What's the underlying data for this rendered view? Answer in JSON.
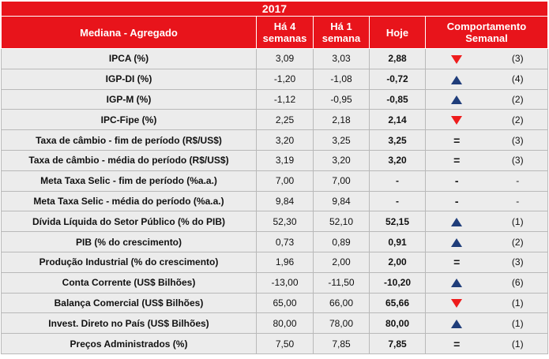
{
  "header": {
    "year": "2017",
    "col_label": "Mediana - Agregado",
    "col_4w": "Há 4 semanas",
    "col_1w": "Há 1 semana",
    "col_today": "Hoje",
    "col_behavior": "Comportamento Semanal"
  },
  "rows": [
    {
      "label": "IPCA (%)",
      "w4": "3,09",
      "w1": "3,03",
      "today": "2,88",
      "trend": "down",
      "symbol": "",
      "count": "(3)"
    },
    {
      "label": "IGP-DI (%)",
      "w4": "-1,20",
      "w1": "-1,08",
      "today": "-0,72",
      "trend": "up",
      "symbol": "",
      "count": "(4)"
    },
    {
      "label": "IGP-M (%)",
      "w4": "-1,12",
      "w1": "-0,95",
      "today": "-0,85",
      "trend": "up",
      "symbol": "",
      "count": "(2)"
    },
    {
      "label": "IPC-Fipe (%)",
      "w4": "2,25",
      "w1": "2,18",
      "today": "2,14",
      "trend": "down",
      "symbol": "",
      "count": "(2)"
    },
    {
      "label": "Taxa de câmbio - fim de período (R$/US$)",
      "w4": "3,20",
      "w1": "3,25",
      "today": "3,25",
      "trend": "equal",
      "symbol": "=",
      "count": "(3)"
    },
    {
      "label": "Taxa de câmbio - média do período (R$/US$)",
      "w4": "3,19",
      "w1": "3,20",
      "today": "3,20",
      "trend": "equal",
      "symbol": "=",
      "count": "(3)"
    },
    {
      "label": "Meta Taxa Selic - fim de período (%a.a.)",
      "w4": "7,00",
      "w1": "7,00",
      "today": "-",
      "trend": "none",
      "symbol": "-",
      "count": "-"
    },
    {
      "label": "Meta Taxa Selic - média do período (%a.a.)",
      "w4": "9,84",
      "w1": "9,84",
      "today": "-",
      "trend": "none",
      "symbol": "-",
      "count": "-"
    },
    {
      "label": "Dívida Líquida do Setor Público (% do PIB)",
      "w4": "52,30",
      "w1": "52,10",
      "today": "52,15",
      "trend": "up",
      "symbol": "",
      "count": "(1)"
    },
    {
      "label": "PIB (% do crescimento)",
      "w4": "0,73",
      "w1": "0,89",
      "today": "0,91",
      "trend": "up",
      "symbol": "",
      "count": "(2)"
    },
    {
      "label": "Produção Industrial (% do crescimento)",
      "w4": "1,96",
      "w1": "2,00",
      "today": "2,00",
      "trend": "equal",
      "symbol": "=",
      "count": "(3)"
    },
    {
      "label": "Conta Corrente (US$ Bilhões)",
      "w4": "-13,00",
      "w1": "-11,50",
      "today": "-10,20",
      "trend": "up",
      "symbol": "",
      "count": "(6)"
    },
    {
      "label": "Balança Comercial (US$ Bilhões)",
      "w4": "65,00",
      "w1": "66,00",
      "today": "65,66",
      "trend": "down",
      "symbol": "",
      "count": "(1)"
    },
    {
      "label": "Invest. Direto no País (US$ Bilhões)",
      "w4": "80,00",
      "w1": "78,00",
      "today": "80,00",
      "trend": "up",
      "symbol": "",
      "count": "(1)"
    },
    {
      "label": "Preços Administrados (%)",
      "w4": "7,50",
      "w1": "7,85",
      "today": "7,85",
      "trend": "equal",
      "symbol": "=",
      "count": "(1)"
    }
  ],
  "colors": {
    "header_red": "#e8141b",
    "up_blue": "#1f3d7a",
    "down_red": "#ee1c1c",
    "row_bg": "#ececec"
  }
}
